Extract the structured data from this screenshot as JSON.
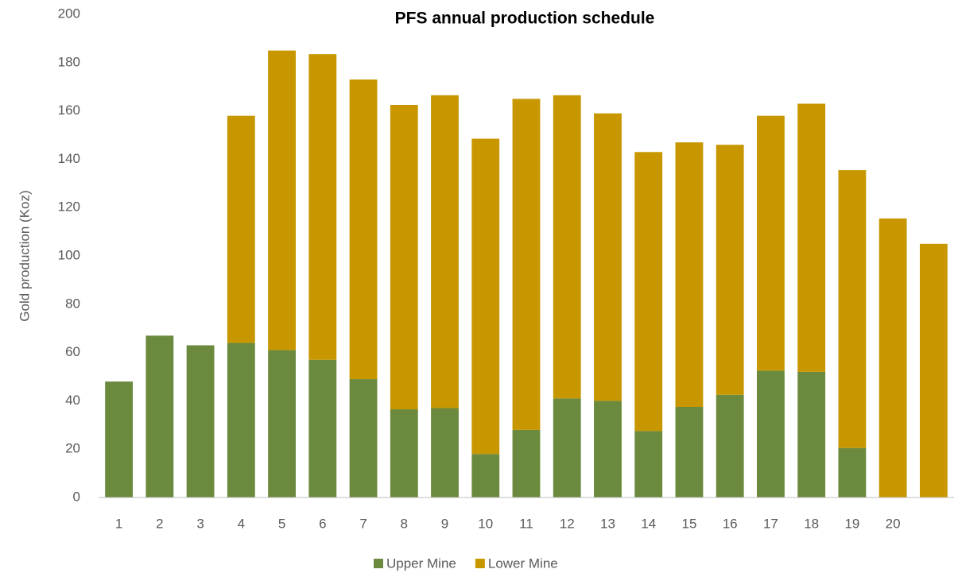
{
  "chart_data": {
    "type": "stacked-bar",
    "title": "PFS annual production schedule",
    "y_label": "Gold production (Koz)",
    "categories": [
      "1",
      "2",
      "3",
      "4",
      "5",
      "6",
      "7",
      "8",
      "9",
      "10",
      "11",
      "12",
      "13",
      "14",
      "15",
      "16",
      "17",
      "18",
      "19",
      "20",
      null
    ],
    "series": [
      {
        "name": "Upper Mine",
        "color": "#6b8a3e",
        "values": [
          48,
          67,
          63,
          64,
          61,
          57,
          49,
          36.5,
          37,
          18,
          28,
          41,
          40,
          27.5,
          37.5,
          42.5,
          52.5,
          52,
          20.5,
          0,
          0
        ]
      },
      {
        "name": "Lower Mine",
        "color": "#c89700",
        "values": [
          0,
          0,
          0,
          94,
          124,
          126.5,
          124,
          126,
          129.5,
          130.5,
          137,
          125.5,
          119,
          115.5,
          109.5,
          103.5,
          105.5,
          111,
          115,
          115.5,
          105
        ]
      }
    ],
    "ylim": [
      0,
      200
    ],
    "yticks": [
      0,
      20,
      40,
      60,
      80,
      100,
      120,
      140,
      160,
      180,
      200
    ],
    "grid": false,
    "legend": "bottom"
  }
}
